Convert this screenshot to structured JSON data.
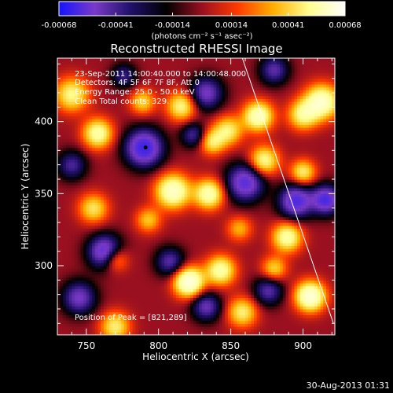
{
  "chart_data": {
    "type": "heatmap",
    "title": "Reconstructed RHESSI Image",
    "xlabel": "Heliocentric X (arcsec)",
    "ylabel": "Heliocentric Y (arcsec)",
    "xlim": [
      730,
      922
    ],
    "ylim": [
      252,
      444
    ],
    "x_ticks": [
      750,
      800,
      850,
      900
    ],
    "y_ticks": [
      300,
      350,
      400
    ],
    "x_tick_labels": [
      "750",
      "800",
      "850",
      "900"
    ],
    "y_tick_labels": [
      "300",
      "350",
      "400"
    ],
    "colorbar": {
      "range": [
        -0.00068,
        0.00068
      ],
      "ticks": [
        -0.00068,
        -0.00041,
        -0.00014,
        0.00014,
        0.00041,
        0.00068
      ],
      "tick_labels": [
        "-0.00068",
        "-0.00041",
        "-0.00014",
        "0.00014",
        "0.00041",
        "0.00068"
      ],
      "unit_label": "(photons cm⁻² s⁻¹ asec⁻²)",
      "colors": [
        "#1414ff",
        "#7a3ac8",
        "#20106a",
        "#000000",
        "#9a1020",
        "#ff3a00",
        "#ffb000",
        "#ffff90",
        "#ffffff"
      ]
    },
    "info_lines": [
      "23-Sep-2011 14:00:40.000 to 14:00:48.000",
      "Detectors: 4F 5F 6F 7F 8F, Att 0",
      "Energy Range: 25.0 - 50.0 keV",
      "Clean    Total counts: 329."
    ],
    "peak_label": "Position of Peak = [821,289]",
    "peak_position": [
      821,
      289
    ],
    "marker_position": [
      791,
      382
    ],
    "limb_points": [
      [
        858,
        444
      ],
      [
        921,
        260
      ]
    ],
    "field": {
      "peaks": [
        {
          "x": 821,
          "y": 289,
          "a": 1.0,
          "s": 7
        },
        {
          "x": 905,
          "y": 279,
          "a": 0.95,
          "s": 7
        },
        {
          "x": 913,
          "y": 414,
          "a": 0.85,
          "s": 8
        },
        {
          "x": 900,
          "y": 405,
          "a": 0.6,
          "s": 7
        },
        {
          "x": 810,
          "y": 352,
          "a": 0.85,
          "s": 8
        },
        {
          "x": 835,
          "y": 350,
          "a": 0.75,
          "s": 7
        },
        {
          "x": 869,
          "y": 404,
          "a": 0.8,
          "s": 7
        },
        {
          "x": 848,
          "y": 394,
          "a": 0.55,
          "s": 7
        },
        {
          "x": 816,
          "y": 411,
          "a": 0.6,
          "s": 7
        },
        {
          "x": 740,
          "y": 419,
          "a": 0.6,
          "s": 8
        },
        {
          "x": 758,
          "y": 392,
          "a": 0.7,
          "s": 7
        },
        {
          "x": 843,
          "y": 297,
          "a": 0.7,
          "s": 7
        },
        {
          "x": 889,
          "y": 320,
          "a": 0.7,
          "s": 7
        },
        {
          "x": 873,
          "y": 373,
          "a": 0.65,
          "s": 7
        },
        {
          "x": 900,
          "y": 365,
          "a": 0.55,
          "s": 6
        },
        {
          "x": 770,
          "y": 258,
          "a": 0.55,
          "s": 7
        },
        {
          "x": 755,
          "y": 340,
          "a": 0.5,
          "s": 7
        },
        {
          "x": 770,
          "y": 305,
          "a": 0.5,
          "s": 6
        },
        {
          "x": 789,
          "y": 414,
          "a": 0.45,
          "s": 6
        },
        {
          "x": 858,
          "y": 268,
          "a": 0.55,
          "s": 7
        },
        {
          "x": 837,
          "y": 386,
          "a": 0.5,
          "s": 6
        },
        {
          "x": 793,
          "y": 332,
          "a": 0.4,
          "s": 6
        },
        {
          "x": 880,
          "y": 298,
          "a": 0.45,
          "s": 6
        },
        {
          "x": 856,
          "y": 326,
          "a": 0.35,
          "s": 6
        }
      ],
      "troughs": [
        {
          "x": 790,
          "y": 382,
          "a": -0.9,
          "s": 9
        },
        {
          "x": 763,
          "y": 310,
          "a": -0.8,
          "s": 8
        },
        {
          "x": 745,
          "y": 278,
          "a": -0.6,
          "s": 8
        },
        {
          "x": 860,
          "y": 358,
          "a": -0.75,
          "s": 9
        },
        {
          "x": 833,
          "y": 420,
          "a": -0.6,
          "s": 8
        },
        {
          "x": 880,
          "y": 436,
          "a": -0.5,
          "s": 7
        },
        {
          "x": 895,
          "y": 345,
          "a": -0.8,
          "s": 8
        },
        {
          "x": 916,
          "y": 346,
          "a": -0.8,
          "s": 7
        },
        {
          "x": 833,
          "y": 272,
          "a": -0.55,
          "s": 7
        },
        {
          "x": 876,
          "y": 283,
          "a": -0.5,
          "s": 7
        },
        {
          "x": 808,
          "y": 303,
          "a": -0.5,
          "s": 7
        },
        {
          "x": 740,
          "y": 370,
          "a": -0.45,
          "s": 7
        },
        {
          "x": 776,
          "y": 432,
          "a": -0.4,
          "s": 6
        },
        {
          "x": 824,
          "y": 391,
          "a": -0.45,
          "s": 6
        }
      ]
    }
  },
  "footer": {
    "timestamp": "30-Aug-2013 01:31"
  }
}
